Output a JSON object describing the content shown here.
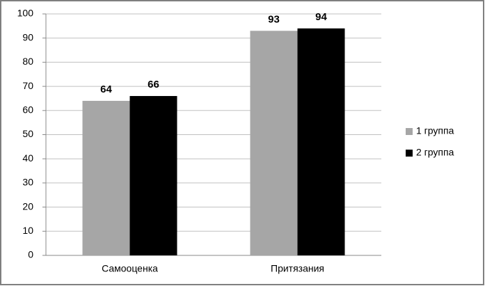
{
  "chart_data": {
    "type": "bar",
    "categories": [
      "Самооценка",
      "Притязания"
    ],
    "series": [
      {
        "name": "1 группа",
        "color": "#a6a6a6",
        "values": [
          64,
          93
        ]
      },
      {
        "name": "2 группа",
        "color": "#000000",
        "values": [
          66,
          94
        ]
      }
    ],
    "ylim": [
      0,
      100
    ],
    "yticks": [
      0,
      10,
      20,
      30,
      40,
      50,
      60,
      70,
      80,
      90,
      100
    ],
    "grid": true,
    "legend": "right",
    "data_labels": true
  }
}
